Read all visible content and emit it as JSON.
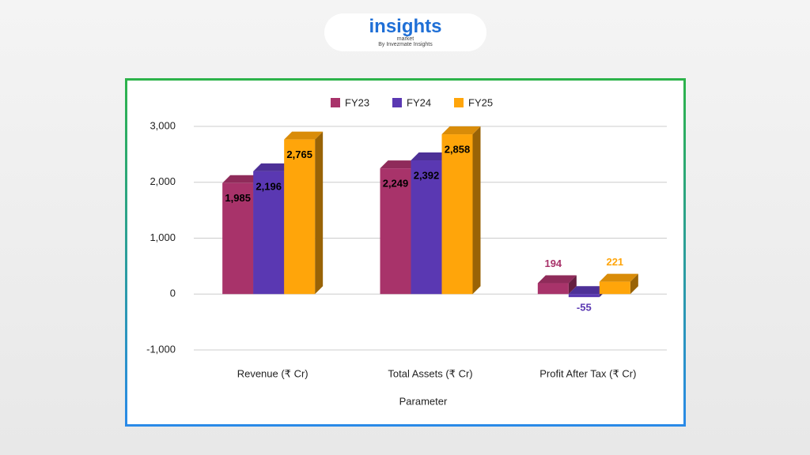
{
  "header": {
    "logo": "insights",
    "logo_sub": "market",
    "tagline": "By Invezmate Insights"
  },
  "chart_data": {
    "type": "bar3d",
    "categories": [
      "Revenue (₹ Cr)",
      "Total Assets (₹ Cr)",
      "Profit After Tax (₹ Cr)"
    ],
    "series": [
      {
        "name": "FY23",
        "color": "#a8336a",
        "values": [
          1985,
          2249,
          194
        ],
        "value_labels": [
          "1,985",
          "2,249",
          "194"
        ]
      },
      {
        "name": "FY24",
        "color": "#5a38b2",
        "values": [
          2196,
          2392,
          -55
        ],
        "value_labels": [
          "2,196",
          "2,392",
          "-55"
        ]
      },
      {
        "name": "FY25",
        "color": "#ffa50a",
        "values": [
          2765,
          2858,
          221
        ],
        "value_labels": [
          "2,765",
          "2,858",
          "221"
        ]
      }
    ],
    "xlabel": "Parameter",
    "ylim": [
      -1000,
      3000
    ],
    "yticks": [
      {
        "value": -1000,
        "label": "-1,000"
      },
      0,
      {
        "value": 1000,
        "label": "1,000"
      },
      {
        "value": 2000,
        "label": "2,000"
      },
      {
        "value": 3000,
        "label": "3,000"
      }
    ],
    "grid": true,
    "legend": "top"
  }
}
